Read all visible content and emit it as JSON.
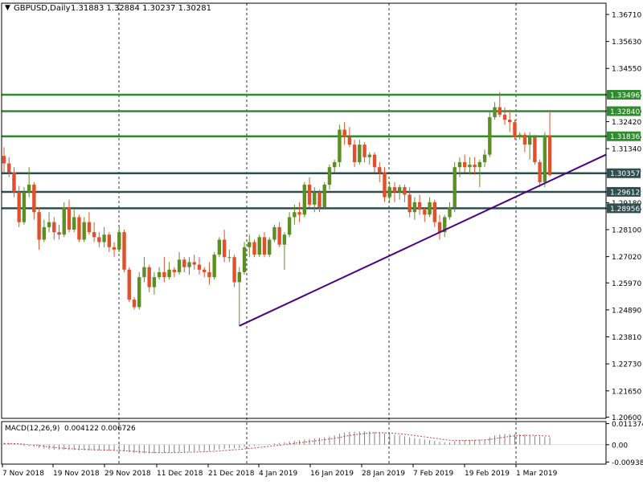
{
  "header": {
    "symbol": "GBPUSD,Daily",
    "ohlc": "1.31883 1.32884 1.30237 1.30281"
  },
  "macd_header": {
    "label": "MACD(12,26,9)",
    "values": "0.004122 0.006726"
  },
  "colors": {
    "bull": "#5b8f22",
    "bear": "#e0502a",
    "level_resistance": "#2e8b2e",
    "level_support": "#2f4f4f",
    "trendline": "#4b0082",
    "grid": "#000000",
    "background": "#ffffff",
    "macd_hist": "#808080",
    "macd_signal": "#c04040"
  },
  "price_axis": {
    "ticks": [
      "1.36710",
      "1.35630",
      "1.34550",
      "1.33496",
      "1.32840",
      "1.32420",
      "1.31836",
      "1.31340",
      "1.30357",
      "1.29612",
      "1.29180",
      "1.28956",
      "1.28100",
      "1.27020",
      "1.25970",
      "1.24890",
      "1.23810",
      "1.22730",
      "1.21650",
      "1.20600"
    ],
    "range": [
      1.2055,
      1.3716
    ]
  },
  "macd_axis": {
    "ticks": [
      "0.011374",
      "0.00",
      "-0.00938"
    ],
    "range": [
      -0.0105,
      0.0125
    ]
  },
  "time_axis": {
    "labels": [
      "7 Nov 2018",
      "19 Nov 2018",
      "29 Nov 2018",
      "11 Dec 2018",
      "21 Dec 2018",
      "4 Jan 2019",
      "16 Jan 2019",
      "28 Jan 2019",
      "7 Feb 2019",
      "19 Feb 2019",
      "1 Mar 2019"
    ]
  },
  "levels": [
    {
      "label": "1.33496",
      "value": 1.33496,
      "kind": "resistance"
    },
    {
      "label": "1.32840",
      "value": 1.3284,
      "kind": "resistance"
    },
    {
      "label": "1.31836",
      "value": 1.31836,
      "kind": "resistance"
    },
    {
      "label": "1.30357",
      "value": 1.30357,
      "kind": "support"
    },
    {
      "label": "1.29612",
      "value": 1.29612,
      "kind": "support"
    },
    {
      "label": "1.28956",
      "value": 1.28956,
      "kind": "support"
    }
  ],
  "chart_data": {
    "type": "candlestick",
    "title": "GBPUSD,Daily",
    "ylim": [
      1.2055,
      1.3716
    ],
    "trendline": {
      "from": {
        "bar": 47,
        "price": 1.2425
      },
      "to": {
        "bar": 114,
        "price": 1.3052
      }
    },
    "candles": [
      [
        1.3105,
        1.314,
        1.304,
        1.3075
      ],
      [
        1.3075,
        1.31,
        1.302,
        1.304
      ],
      [
        1.304,
        1.306,
        1.294,
        1.296
      ],
      [
        1.296,
        1.2985,
        1.282,
        1.284
      ],
      [
        1.284,
        1.298,
        1.283,
        1.296
      ],
      [
        1.296,
        1.306,
        1.294,
        1.299
      ],
      [
        1.299,
        1.3,
        1.285,
        1.288
      ],
      [
        1.288,
        1.29,
        1.273,
        1.277
      ],
      [
        1.277,
        1.285,
        1.276,
        1.282
      ],
      [
        1.282,
        1.288,
        1.28,
        1.284
      ],
      [
        1.284,
        1.286,
        1.277,
        1.28
      ],
      [
        1.28,
        1.283,
        1.277,
        1.279
      ],
      [
        1.279,
        1.292,
        1.278,
        1.29
      ],
      [
        1.29,
        1.293,
        1.28,
        1.281
      ],
      [
        1.281,
        1.289,
        1.28,
        1.286
      ],
      [
        1.286,
        1.287,
        1.276,
        1.277
      ],
      [
        1.277,
        1.286,
        1.276,
        1.284
      ],
      [
        1.284,
        1.288,
        1.279,
        1.28
      ],
      [
        1.28,
        1.284,
        1.276,
        1.278
      ],
      [
        1.278,
        1.28,
        1.274,
        1.276
      ],
      [
        1.276,
        1.282,
        1.274,
        1.279
      ],
      [
        1.279,
        1.28,
        1.272,
        1.274
      ],
      [
        1.274,
        1.276,
        1.27,
        1.273
      ],
      [
        1.273,
        1.282,
        1.272,
        1.28
      ],
      [
        1.28,
        1.281,
        1.264,
        1.265
      ],
      [
        1.265,
        1.266,
        1.252,
        1.253
      ],
      [
        1.253,
        1.254,
        1.249,
        1.25
      ],
      [
        1.25,
        1.264,
        1.249,
        1.262
      ],
      [
        1.262,
        1.27,
        1.26,
        1.266
      ],
      [
        1.266,
        1.267,
        1.256,
        1.258
      ],
      [
        1.258,
        1.264,
        1.255,
        1.262
      ],
      [
        1.262,
        1.266,
        1.261,
        1.264
      ],
      [
        1.264,
        1.27,
        1.26,
        1.262
      ],
      [
        1.262,
        1.268,
        1.261,
        1.265
      ],
      [
        1.265,
        1.266,
        1.262,
        1.264
      ],
      [
        1.264,
        1.272,
        1.263,
        1.269
      ],
      [
        1.269,
        1.27,
        1.264,
        1.266
      ],
      [
        1.266,
        1.27,
        1.263,
        1.268
      ],
      [
        1.268,
        1.271,
        1.265,
        1.267
      ],
      [
        1.267,
        1.27,
        1.263,
        1.265
      ],
      [
        1.265,
        1.266,
        1.262,
        1.264
      ],
      [
        1.264,
        1.268,
        1.259,
        1.262
      ],
      [
        1.262,
        1.272,
        1.261,
        1.271
      ],
      [
        1.271,
        1.278,
        1.27,
        1.277
      ],
      [
        1.277,
        1.281,
        1.268,
        1.27
      ],
      [
        1.27,
        1.273,
        1.268,
        1.27
      ],
      [
        1.27,
        1.271,
        1.258,
        1.26
      ],
      [
        1.26,
        1.266,
        1.2425,
        1.264
      ],
      [
        1.264,
        1.276,
        1.263,
        1.274
      ],
      [
        1.274,
        1.279,
        1.27,
        1.276
      ],
      [
        1.276,
        1.277,
        1.27,
        1.271
      ],
      [
        1.271,
        1.279,
        1.27,
        1.278
      ],
      [
        1.278,
        1.28,
        1.27,
        1.271
      ],
      [
        1.271,
        1.278,
        1.27,
        1.277
      ],
      [
        1.277,
        1.283,
        1.276,
        1.282
      ],
      [
        1.282,
        1.284,
        1.274,
        1.275
      ],
      [
        1.275,
        1.28,
        1.265,
        1.279
      ],
      [
        1.279,
        1.288,
        1.278,
        1.286
      ],
      [
        1.286,
        1.291,
        1.283,
        1.288
      ],
      [
        1.288,
        1.292,
        1.284,
        1.287
      ],
      [
        1.287,
        1.3,
        1.286,
        1.299
      ],
      [
        1.299,
        1.302,
        1.29,
        1.291
      ],
      [
        1.291,
        1.298,
        1.288,
        1.296
      ],
      [
        1.296,
        1.297,
        1.288,
        1.29
      ],
      [
        1.29,
        1.3,
        1.289,
        1.299
      ],
      [
        1.299,
        1.307,
        1.297,
        1.306
      ],
      [
        1.306,
        1.309,
        1.304,
        1.308
      ],
      [
        1.308,
        1.323,
        1.306,
        1.321
      ],
      [
        1.321,
        1.324,
        1.315,
        1.318
      ],
      [
        1.318,
        1.322,
        1.314,
        1.315
      ],
      [
        1.315,
        1.317,
        1.306,
        1.308
      ],
      [
        1.308,
        1.317,
        1.307,
        1.315
      ],
      [
        1.315,
        1.316,
        1.308,
        1.31
      ],
      [
        1.31,
        1.312,
        1.307,
        1.311
      ],
      [
        1.311,
        1.312,
        1.304,
        1.306
      ],
      [
        1.306,
        1.308,
        1.3,
        1.304
      ],
      [
        1.304,
        1.306,
        1.292,
        1.294
      ],
      [
        1.294,
        1.3,
        1.292,
        1.298
      ],
      [
        1.298,
        1.3,
        1.292,
        1.296
      ],
      [
        1.296,
        1.299,
        1.293,
        1.298
      ],
      [
        1.298,
        1.299,
        1.292,
        1.295
      ],
      [
        1.295,
        1.298,
        1.286,
        1.288
      ],
      [
        1.288,
        1.294,
        1.285,
        1.292
      ],
      [
        1.292,
        1.295,
        1.287,
        1.289
      ],
      [
        1.289,
        1.29,
        1.284,
        1.287
      ],
      [
        1.287,
        1.294,
        1.286,
        1.292
      ],
      [
        1.292,
        1.293,
        1.282,
        1.284
      ],
      [
        1.284,
        1.287,
        1.277,
        1.28
      ],
      [
        1.28,
        1.287,
        1.278,
        1.286
      ],
      [
        1.286,
        1.292,
        1.285,
        1.29
      ],
      [
        1.29,
        1.308,
        1.288,
        1.306
      ],
      [
        1.306,
        1.31,
        1.302,
        1.308
      ],
      [
        1.308,
        1.311,
        1.304,
        1.306
      ],
      [
        1.306,
        1.31,
        1.303,
        1.307
      ],
      [
        1.307,
        1.31,
        1.303,
        1.306
      ],
      [
        1.306,
        1.309,
        1.298,
        1.308
      ],
      [
        1.308,
        1.313,
        1.306,
        1.311
      ],
      [
        1.311,
        1.328,
        1.31,
        1.326
      ],
      [
        1.326,
        1.332,
        1.325,
        1.33
      ],
      [
        1.33,
        1.336,
        1.326,
        1.327
      ],
      [
        1.327,
        1.33,
        1.323,
        1.325
      ],
      [
        1.325,
        1.329,
        1.32,
        1.324
      ],
      [
        1.324,
        1.325,
        1.317,
        1.318
      ],
      [
        1.318,
        1.32,
        1.317,
        1.319
      ],
      [
        1.319,
        1.32,
        1.312,
        1.315
      ],
      [
        1.315,
        1.32,
        1.309,
        1.318
      ],
      [
        1.318,
        1.319,
        1.307,
        1.308
      ],
      [
        1.308,
        1.309,
        1.298,
        1.3
      ],
      [
        1.3,
        1.32,
        1.298,
        1.3188
      ],
      [
        1.3188,
        1.3288,
        1.3024,
        1.3028
      ]
    ]
  },
  "macd_data": {
    "hist": [
      0.001,
      0.0009,
      0.0005,
      -0.0002,
      -0.0006,
      -0.0008,
      -0.0012,
      -0.0018,
      -0.0022,
      -0.0025,
      -0.0027,
      -0.0028,
      -0.0028,
      -0.0029,
      -0.0029,
      -0.003,
      -0.003,
      -0.0031,
      -0.0031,
      -0.0032,
      -0.0032,
      -0.0033,
      -0.0034,
      -0.0034,
      -0.0036,
      -0.004,
      -0.0045,
      -0.0047,
      -0.0047,
      -0.0047,
      -0.0046,
      -0.0045,
      -0.0044,
      -0.0043,
      -0.0042,
      -0.004,
      -0.0039,
      -0.0038,
      -0.0036,
      -0.0035,
      -0.0034,
      -0.0033,
      -0.003,
      -0.0026,
      -0.0023,
      -0.002,
      -0.002,
      -0.0018,
      -0.0013,
      -0.001,
      -0.0007,
      -0.0003,
      0.0,
      0.0003,
      0.0007,
      0.001,
      0.0013,
      0.0017,
      0.0021,
      0.0024,
      0.0028,
      0.003,
      0.0034,
      0.0037,
      0.004,
      0.0045,
      0.005,
      0.006,
      0.0066,
      0.007,
      0.007,
      0.0071,
      0.0072,
      0.0072,
      0.007,
      0.0068,
      0.0062,
      0.0058,
      0.0054,
      0.005,
      0.0046,
      0.004,
      0.0036,
      0.0032,
      0.0028,
      0.0025,
      0.002,
      0.0015,
      0.0013,
      0.0012,
      0.0018,
      0.0022,
      0.0024,
      0.0025,
      0.0026,
      0.0027,
      0.0029,
      0.004,
      0.005,
      0.0055,
      0.0058,
      0.0058,
      0.0057,
      0.0057,
      0.0055,
      0.0053,
      0.005,
      0.0045,
      0.0041,
      0.004
    ],
    "signal_start": 0.0005
  }
}
